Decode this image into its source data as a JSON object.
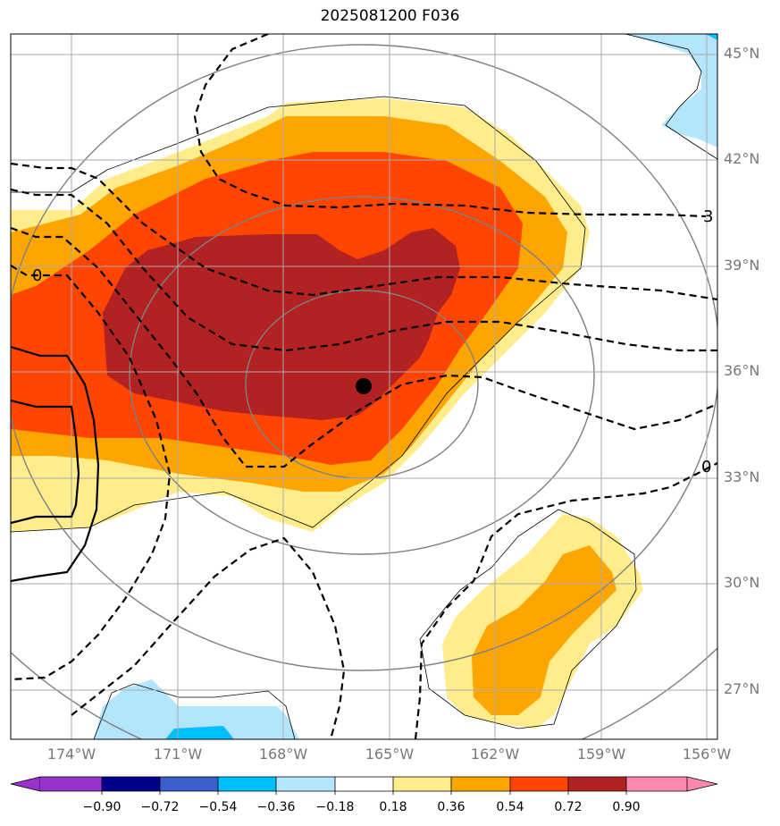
{
  "title": "2025081200 F036",
  "lat_labels": [
    "45°N",
    "42°N",
    "39°N",
    "36°N",
    "33°N",
    "30°N",
    "27°N"
  ],
  "lon_labels": [
    "174°W",
    "171°W",
    "168°W",
    "165°W",
    "162°W",
    "159°W",
    "156°W"
  ],
  "contour_labels": [
    "0",
    "3",
    "0"
  ],
  "colorbar": {
    "ticks": [
      "−0.90",
      "−0.72",
      "−0.54",
      "−0.36",
      "−0.18",
      "0.18",
      "0.36",
      "0.54",
      "0.72",
      "0.90"
    ],
    "colors": [
      "#9932cc",
      "#00008b",
      "#3a5fcd",
      "#00bfff",
      "#b3e5fc",
      "#ffffff",
      "#ffec8b",
      "#ffa500",
      "#ff4500",
      "#b22222",
      "#ff88b0"
    ]
  },
  "palette": {
    "light_yellow": "#ffec8b",
    "orange": "#ffa500",
    "red_orange": "#ff4500",
    "dark_red": "#b22222",
    "light_blue": "#b3e5fc",
    "deep_sky_blue": "#00bfff"
  },
  "storm_center_marker": "black-dot"
}
